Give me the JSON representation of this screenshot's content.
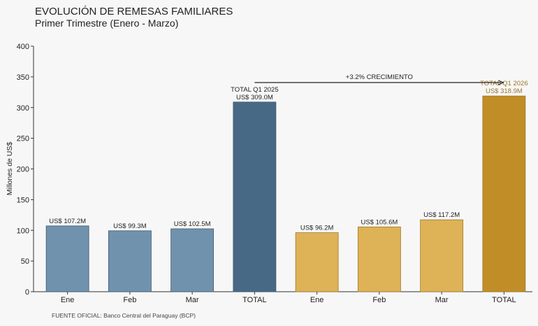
{
  "source_text": "FUENTE OFICIAL: Banco Central del Paraguay (BCP)",
  "growth_label": "+3.2% CRECIMIENTO",
  "colors": {
    "bar_2025": "#7092ad",
    "total_2025": "#476985",
    "bar_2026": "#deb257",
    "total_2026": "#c18d27",
    "total_2026_label": "#9a7428"
  },
  "chart_data": {
    "type": "bar",
    "title": "EVOLUCIÓN DE REMESAS FAMILIARES",
    "subtitle": "Primer Trimestre (Enero - Marzo)",
    "ylabel": "Millones de US$",
    "ylim": [
      0,
      400
    ],
    "yticks": [
      0,
      50,
      100,
      150,
      200,
      250,
      300,
      350,
      400
    ],
    "categories": [
      "Ene",
      "Feb",
      "Mar",
      "TOTAL",
      "Ene",
      "Feb",
      "Mar",
      "TOTAL"
    ],
    "values": [
      107.2,
      99.3,
      102.5,
      309.0,
      96.2,
      105.6,
      117.2,
      318.9
    ],
    "data_labels": [
      [
        "US$ 107.2M"
      ],
      [
        "US$ 99.3M"
      ],
      [
        "US$ 102.5M"
      ],
      [
        "TOTAL Q1 2025",
        "US$ 309.0M"
      ],
      [
        "US$ 96.2M"
      ],
      [
        "US$ 105.6M"
      ],
      [
        "US$ 117.2M"
      ],
      [
        "TOTAL Q1 2026",
        "US$ 318.9M"
      ]
    ],
    "bar_groups": [
      "2025",
      "2025",
      "2025",
      "total_2025",
      "2026",
      "2026",
      "2026",
      "total_2026"
    ],
    "grid": false
  }
}
